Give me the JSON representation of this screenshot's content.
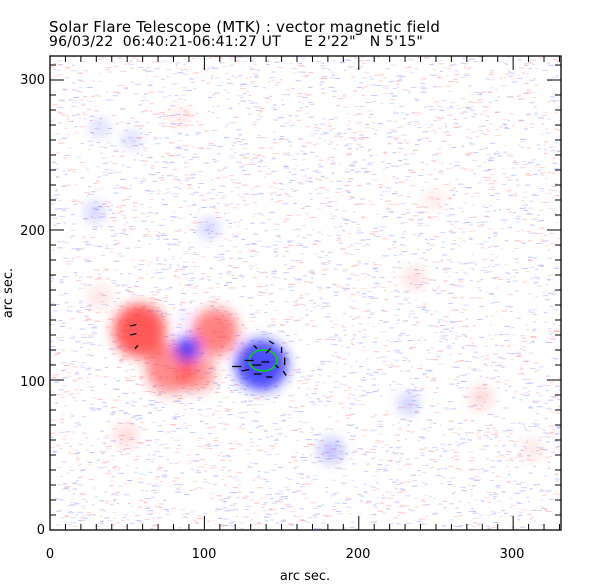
{
  "chart_data": {
    "type": "heatmap",
    "title": "Solar Flare Telescope (MTK) : vector magnetic field",
    "subtitle": "96/03/22  06:40:21-06:41:27 UT     E 2'22\"   N 5'15\"",
    "xlabel": "arc sec.",
    "ylabel": "arc sec.",
    "xlim": [
      0,
      331
    ],
    "ylim": [
      0,
      316
    ],
    "xticks": [
      "0",
      "100",
      "200",
      "300"
    ],
    "yticks": [
      "0",
      "100",
      "200",
      "300"
    ],
    "colors": {
      "positive": "#ff2020",
      "negative": "#2020ff",
      "contour": "#00dd00",
      "vector": "#000000"
    },
    "positive_regions": [
      {
        "x": 58,
        "y": 133,
        "r": 17,
        "strength": 1.0
      },
      {
        "x": 107,
        "y": 132,
        "r": 15,
        "strength": 0.75
      },
      {
        "x": 78,
        "y": 108,
        "r": 16,
        "strength": 0.7
      },
      {
        "x": 95,
        "y": 105,
        "r": 12,
        "strength": 0.6
      },
      {
        "x": 236,
        "y": 168,
        "r": 6,
        "strength": 0.25
      },
      {
        "x": 279,
        "y": 88,
        "r": 7,
        "strength": 0.25
      },
      {
        "x": 49,
        "y": 63,
        "r": 7,
        "strength": 0.25
      },
      {
        "x": 312,
        "y": 53,
        "r": 6,
        "strength": 0.2
      },
      {
        "x": 249,
        "y": 220,
        "r": 5,
        "strength": 0.2
      },
      {
        "x": 84,
        "y": 275,
        "r": 5,
        "strength": 0.2
      },
      {
        "x": 32,
        "y": 155,
        "r": 7,
        "strength": 0.2
      }
    ],
    "negative_regions": [
      {
        "x": 89,
        "y": 121,
        "r": 8,
        "strength": 1.0
      },
      {
        "x": 137,
        "y": 110,
        "r": 17,
        "strength": 1.0
      },
      {
        "x": 182,
        "y": 53,
        "r": 8,
        "strength": 0.35
      },
      {
        "x": 232,
        "y": 84,
        "r": 6,
        "strength": 0.35
      },
      {
        "x": 32,
        "y": 268,
        "r": 5,
        "strength": 0.3
      },
      {
        "x": 103,
        "y": 201,
        "r": 6,
        "strength": 0.3
      },
      {
        "x": 29,
        "y": 212,
        "r": 6,
        "strength": 0.3
      },
      {
        "x": 53,
        "y": 260,
        "r": 5,
        "strength": 0.3
      },
      {
        "x": 88,
        "y": 141,
        "r": 3,
        "strength": 0.3
      }
    ],
    "contours": [
      {
        "x": 138,
        "y": 113,
        "rx": 9,
        "ry": 7
      }
    ],
    "vectors": [
      [
        52,
        136,
        4,
        1
      ],
      [
        52,
        130,
        4,
        1
      ],
      [
        57,
        123,
        -2,
        -2
      ],
      [
        118,
        109,
        6,
        0
      ],
      [
        126,
        113,
        6,
        0
      ],
      [
        124,
        106,
        5,
        1
      ],
      [
        131,
        110,
        6,
        0
      ],
      [
        132,
        104,
        5,
        0
      ],
      [
        137,
        112,
        5,
        0
      ],
      [
        140,
        118,
        3,
        3
      ],
      [
        145,
        124,
        -3,
        2
      ],
      [
        150,
        118,
        0,
        4
      ],
      [
        152,
        110,
        0,
        5
      ],
      [
        134,
        121,
        -2,
        2
      ],
      [
        140,
        102,
        4,
        0
      ],
      [
        153,
        103,
        -2,
        3
      ],
      [
        146,
        110,
        2,
        -2
      ]
    ]
  }
}
